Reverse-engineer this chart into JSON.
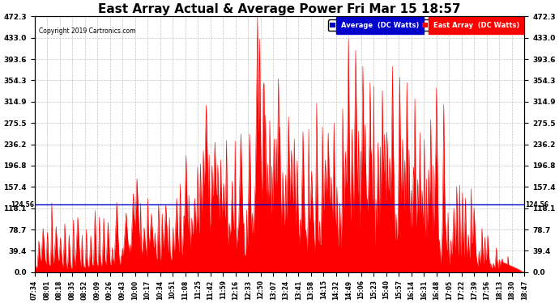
{
  "title": "East Array Actual & Average Power Fri Mar 15 18:57",
  "copyright": "Copyright 2019 Cartronics.com",
  "avg_value": 124.56,
  "ymin": 0.0,
  "ymax": 472.3,
  "yticks": [
    0.0,
    39.4,
    78.7,
    118.1,
    157.4,
    196.8,
    236.2,
    275.5,
    314.9,
    354.3,
    393.6,
    433.0,
    472.3
  ],
  "ytick_labels": [
    "0.0",
    "39.4",
    "78.7",
    "118.1",
    "157.4",
    "196.8",
    "236.2",
    "275.5",
    "314.9",
    "354.3",
    "393.6",
    "433.0",
    "472.3"
  ],
  "background_color": "#ffffff",
  "grid_color": "#aaaaaa",
  "fill_color": "#ff0000",
  "avg_line_color": "#0000cc",
  "title_fontsize": 11,
  "legend_avg_color": "#0000cc",
  "legend_east_color": "#ff0000",
  "legend_avg_label": "Average  (DC Watts)",
  "legend_east_label": "East Array  (DC Watts)",
  "xticklabels": [
    "07:34",
    "08:01",
    "08:18",
    "08:35",
    "08:52",
    "09:09",
    "09:26",
    "09:43",
    "10:00",
    "10:17",
    "10:34",
    "10:51",
    "11:08",
    "11:25",
    "11:42",
    "11:59",
    "12:16",
    "12:33",
    "12:50",
    "13:07",
    "13:24",
    "13:41",
    "13:58",
    "14:15",
    "14:32",
    "14:49",
    "15:06",
    "15:23",
    "15:40",
    "15:57",
    "16:14",
    "16:31",
    "16:48",
    "17:05",
    "17:22",
    "17:39",
    "17:56",
    "18:13",
    "18:30",
    "18:47"
  ],
  "n_points": 680
}
